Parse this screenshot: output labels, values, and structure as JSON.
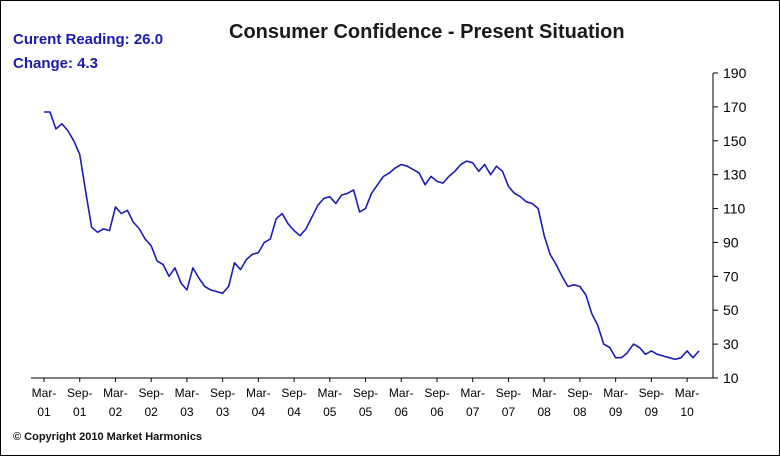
{
  "header": {
    "current_label": "Curent Reading:",
    "current_value": "26.0",
    "change_label": "Change:",
    "change_value": "4.3"
  },
  "footer": {
    "copyright": "© Copyright 2010 Market Harmonics"
  },
  "chart_data": {
    "type": "line",
    "title": "Consumer Confidence - Present Situation",
    "xlabel": "",
    "ylabel": "",
    "ylim": [
      10,
      190
    ],
    "yticks": [
      10,
      30,
      50,
      70,
      90,
      110,
      130,
      150,
      170,
      190
    ],
    "y_axis_side": "right",
    "grid": false,
    "line_color": "#1c1cb4",
    "xticks": [
      {
        "top": "Mar-",
        "bottom": "01",
        "index": 0
      },
      {
        "top": "Sep-",
        "bottom": "01",
        "index": 6
      },
      {
        "top": "Mar-",
        "bottom": "02",
        "index": 12
      },
      {
        "top": "Sep-",
        "bottom": "02",
        "index": 18
      },
      {
        "top": "Mar-",
        "bottom": "03",
        "index": 24
      },
      {
        "top": "Sep-",
        "bottom": "03",
        "index": 30
      },
      {
        "top": "Mar-",
        "bottom": "04",
        "index": 36
      },
      {
        "top": "Sep-",
        "bottom": "04",
        "index": 42
      },
      {
        "top": "Mar-",
        "bottom": "05",
        "index": 48
      },
      {
        "top": "Sep-",
        "bottom": "05",
        "index": 54
      },
      {
        "top": "Mar-",
        "bottom": "06",
        "index": 60
      },
      {
        "top": "Sep-",
        "bottom": "06",
        "index": 66
      },
      {
        "top": "Mar-",
        "bottom": "07",
        "index": 72
      },
      {
        "top": "Sep-",
        "bottom": "07",
        "index": 78
      },
      {
        "top": "Mar-",
        "bottom": "08",
        "index": 84
      },
      {
        "top": "Sep-",
        "bottom": "08",
        "index": 90
      },
      {
        "top": "Mar-",
        "bottom": "09",
        "index": 96
      },
      {
        "top": "Sep-",
        "bottom": "09",
        "index": 102
      },
      {
        "top": "Mar-",
        "bottom": "10",
        "index": 108
      }
    ],
    "series": [
      {
        "values": [
          167,
          167,
          157,
          160,
          156,
          150,
          142,
          120,
          99,
          96,
          98,
          97,
          111,
          107,
          109,
          102,
          98,
          92,
          88,
          79,
          77,
          70,
          75,
          66,
          62,
          75,
          69,
          64,
          62,
          61,
          60,
          64,
          78,
          74,
          80,
          83,
          84,
          90,
          92,
          104,
          107,
          101,
          97,
          94,
          98,
          105,
          112,
          116,
          117,
          113,
          118,
          119,
          121,
          108,
          110,
          119,
          124,
          129,
          131,
          134,
          136,
          135,
          133,
          131,
          124,
          129,
          126,
          125,
          129,
          132,
          136,
          138,
          137,
          132,
          136,
          130,
          135,
          132,
          123,
          119,
          117,
          114,
          113,
          110,
          94,
          83,
          77,
          70,
          64,
          65,
          64,
          59,
          48,
          41,
          30,
          28,
          22,
          22,
          25,
          30,
          28,
          24,
          26,
          24,
          23,
          22,
          21,
          22,
          26,
          22,
          26
        ]
      }
    ]
  }
}
